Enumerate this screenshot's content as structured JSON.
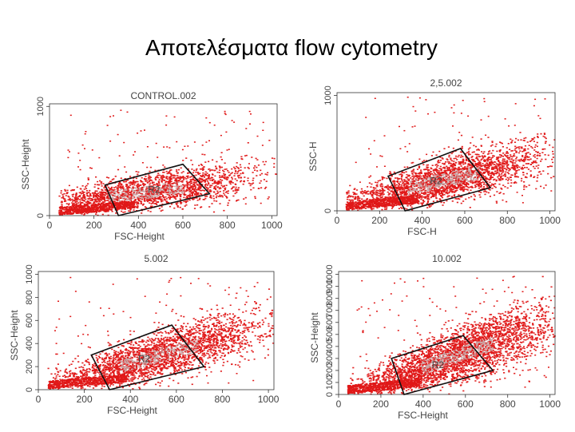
{
  "slide": {
    "title": "Αποτελέσματα flow cytometry"
  },
  "chart_data": [
    {
      "type": "scatter",
      "title": "CONTROL.002",
      "xlabel": "FSC-Height",
      "ylabel": "SSC-Height",
      "xlim": [
        0,
        1024
      ],
      "ylim": [
        0,
        1024
      ],
      "x_ticks": [
        "0",
        "200",
        "400",
        "600",
        "800",
        "1000"
      ],
      "y_ticks": [
        "0",
        "1000"
      ],
      "gate": {
        "name": "R2",
        "polygon": [
          [
            250,
            280
          ],
          [
            600,
            470
          ],
          [
            720,
            200
          ],
          [
            310,
            0
          ]
        ]
      },
      "cloud": {
        "center": [
          430,
          220
        ],
        "slope": 0.28,
        "spread": 110,
        "density": "medium"
      },
      "color": "#e01818"
    },
    {
      "type": "scatter",
      "title": "2,5.002",
      "xlabel": "FSC-H",
      "ylabel": "SSC-H",
      "xlim": [
        0,
        1024
      ],
      "ylim": [
        0,
        1024
      ],
      "x_ticks": [
        "0",
        "200",
        "400",
        "600",
        "800",
        "1000"
      ],
      "y_ticks": [
        "0",
        "1000"
      ],
      "gate": {
        "name": "R2",
        "polygon": [
          [
            240,
            300
          ],
          [
            580,
            540
          ],
          [
            720,
            200
          ],
          [
            320,
            0
          ]
        ]
      },
      "cloud": {
        "center": [
          500,
          270
        ],
        "slope": 0.42,
        "spread": 120,
        "density": "high"
      },
      "color": "#e01818"
    },
    {
      "type": "scatter",
      "title": "5.002",
      "xlabel": "FSC-Height",
      "ylabel": "SSC-Height",
      "xlim": [
        0,
        1024
      ],
      "ylim": [
        0,
        1024
      ],
      "x_ticks": [
        "0",
        "200",
        "400",
        "600",
        "800",
        "1000"
      ],
      "y_ticks": [
        "0",
        "200",
        "400",
        "600",
        "800",
        "1000"
      ],
      "gate": {
        "name": "R2",
        "polygon": [
          [
            230,
            300
          ],
          [
            580,
            560
          ],
          [
            720,
            200
          ],
          [
            310,
            0
          ]
        ]
      },
      "cloud": {
        "center": [
          520,
          300
        ],
        "slope": 0.55,
        "spread": 130,
        "density": "high"
      },
      "color": "#e01818"
    },
    {
      "type": "scatter",
      "title": "10.002",
      "xlabel": "FSC-Height",
      "ylabel": "SSC-Height",
      "xlim": [
        0,
        1024
      ],
      "ylim": [
        0,
        1024
      ],
      "x_ticks": [
        "0",
        "200",
        "400",
        "600",
        "800",
        "1000"
      ],
      "y_ticks": [
        "0",
        "100",
        "200",
        "300",
        "400",
        "500",
        "600",
        "700",
        "800",
        "900",
        "1000"
      ],
      "gate": {
        "name": "R2",
        "polygon": [
          [
            250,
            300
          ],
          [
            590,
            490
          ],
          [
            730,
            200
          ],
          [
            310,
            0
          ]
        ]
      },
      "cloud": {
        "center": [
          560,
          330
        ],
        "slope": 0.6,
        "spread": 140,
        "density": "very-high"
      },
      "color": "#e01818"
    }
  ]
}
